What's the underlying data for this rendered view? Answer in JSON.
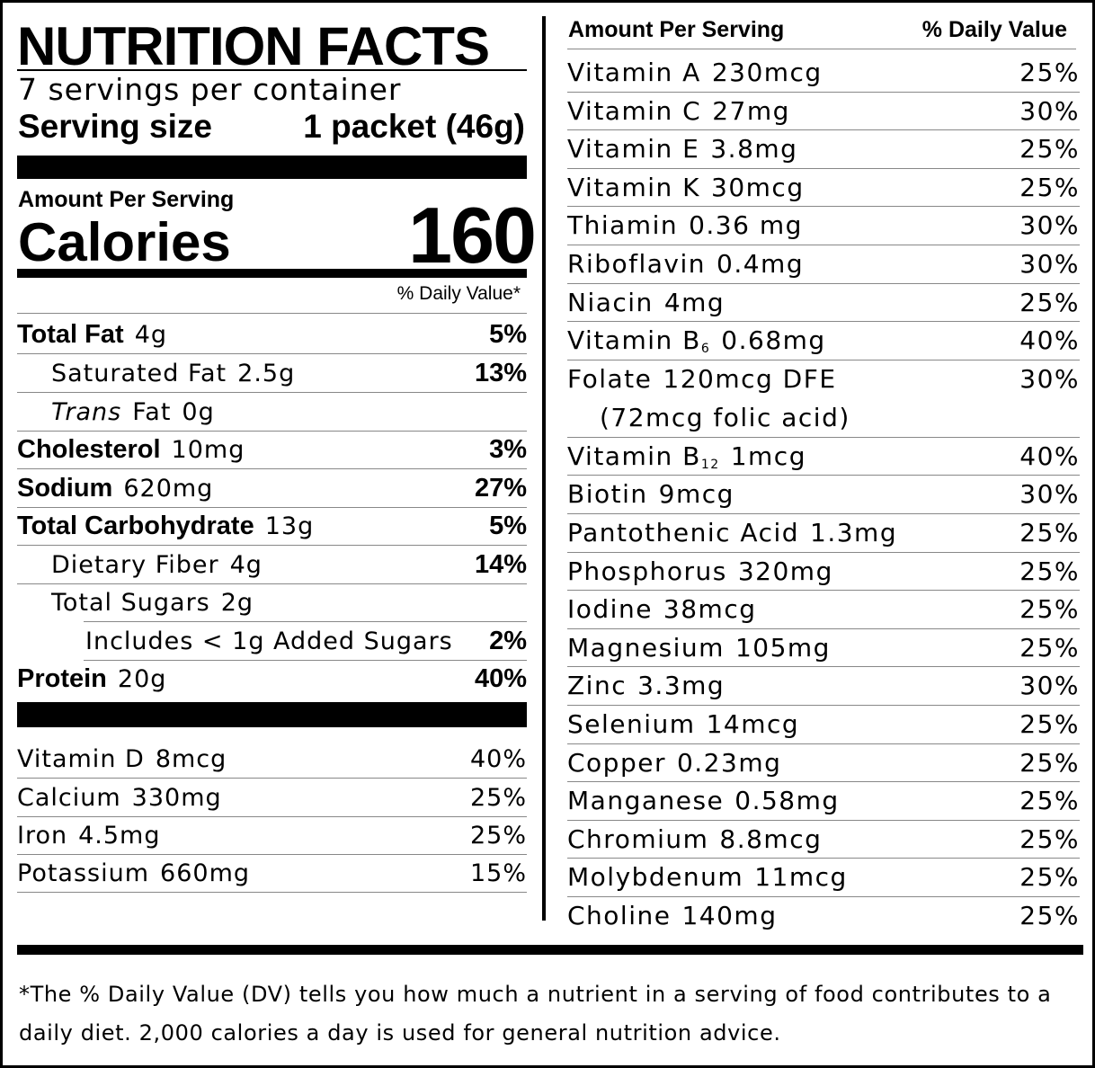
{
  "title": "NUTRITION FACTS",
  "servings": "7 servings per container",
  "serving_size_label": "Serving size",
  "serving_size": "1 packet (46g)",
  "amount_per_serving": "Amount Per Serving",
  "calories_label": "Calories",
  "calories": 160,
  "dv_header": "% Daily Value*",
  "nutrients": [
    {
      "name": "Total Fat",
      "amount": "4g",
      "dv": "5%"
    },
    {
      "name": "Saturated Fat",
      "amount": "2.5g",
      "dv": "13%"
    },
    {
      "italic": "Trans",
      "name": "Fat",
      "amount": "0g"
    },
    {
      "name": "Cholesterol",
      "amount": "10mg",
      "dv": "3%"
    },
    {
      "name": "Sodium",
      "amount": "620mg",
      "dv": "27%"
    },
    {
      "name": "Total Carbohydrate",
      "amount": "13g",
      "dv": "5%"
    },
    {
      "name": "Dietary Fiber",
      "amount": "4g",
      "dv": "14%"
    },
    {
      "name": "Total Sugars",
      "amount": "2g"
    },
    {
      "name": "Includes < 1g Added Sugars",
      "dv": "2%"
    },
    {
      "name": "Protein",
      "amount": "20g",
      "dv": "40%"
    }
  ],
  "vitamins": [
    {
      "name": "Vitamin D",
      "amount": "8mcg",
      "dv": "40%"
    },
    {
      "name": "Calcium",
      "amount": "330mg",
      "dv": "25%"
    },
    {
      "name": "Iron",
      "amount": "4.5mg",
      "dv": "25%"
    },
    {
      "name": "Potassium",
      "amount": "660mg",
      "dv": "15%"
    }
  ],
  "right": {
    "header": {
      "amount_per_serving": "Amount Per Serving",
      "dv": "% Daily Value"
    },
    "items": [
      {
        "name": "Vitamin A",
        "amount": "230mcg",
        "dv": "25%"
      },
      {
        "name": "Vitamin C",
        "amount": "27mg",
        "dv": "30%"
      },
      {
        "name": "Vitamin E",
        "amount": "3.8mg",
        "dv": "25%"
      },
      {
        "name": "Vitamin K",
        "amount": "30mcg",
        "dv": "25%"
      },
      {
        "name": "Thiamin",
        "amount": "0.36 mg",
        "dv": "30%"
      },
      {
        "name": "Riboflavin",
        "amount": "0.4mg",
        "dv": "30%"
      },
      {
        "name": "Niacin",
        "amount": "4mg",
        "dv": "25%"
      },
      {
        "name": "Vitamin B",
        "sub": "6",
        "amount": "0.68mg",
        "dv": "40%"
      },
      {
        "name": "Folate",
        "amount": "120mcg DFE",
        "note": "(72mcg folic acid)",
        "dv": "30%"
      },
      {
        "name": "Vitamin B",
        "sub": "12",
        "amount": "1mcg",
        "dv": "40%"
      },
      {
        "name": "Biotin",
        "amount": "9mcg",
        "dv": "30%"
      },
      {
        "name": "Pantothenic Acid",
        "amount": "1.3mg",
        "dv": "25%"
      },
      {
        "name": "Phosphorus",
        "amount": "320mg",
        "dv": "25%"
      },
      {
        "name": "Iodine",
        "amount": "38mcg",
        "dv": "25%"
      },
      {
        "name": "Magnesium",
        "amount": "105mg",
        "dv": "25%"
      },
      {
        "name": "Zinc",
        "amount": "3.3mg",
        "dv": "30%"
      },
      {
        "name": "Selenium",
        "amount": "14mcg",
        "dv": "25%"
      },
      {
        "name": "Copper",
        "amount": "0.23mg",
        "dv": "25%"
      },
      {
        "name": "Manganese",
        "amount": "0.58mg",
        "dv": "25%"
      },
      {
        "name": "Chromium",
        "amount": "8.8mcg",
        "dv": "25%"
      },
      {
        "name": "Molybdenum",
        "amount": "11mcg",
        "dv": "25%"
      },
      {
        "name": "Choline",
        "amount": "140mg",
        "dv": "25%"
      }
    ]
  },
  "footnote": "*The % Daily Value (DV) tells you how much a nutrient in a serving of food contributes to a daily diet. 2,000 calories a day is used for general nutrition advice."
}
